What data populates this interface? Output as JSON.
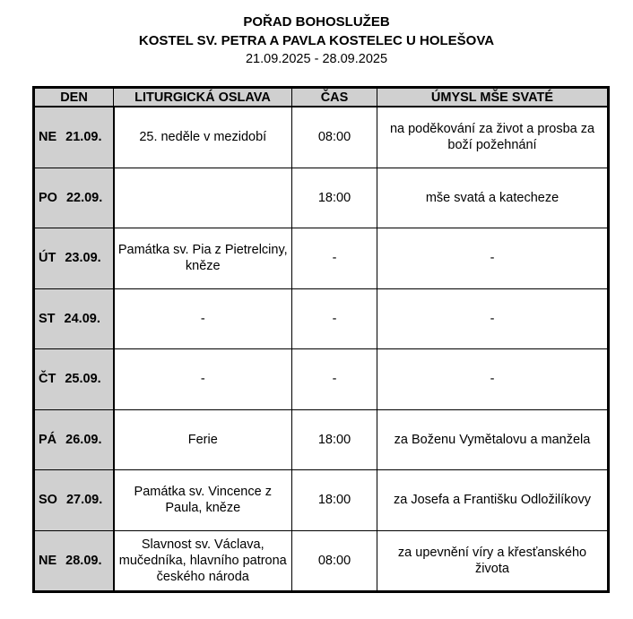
{
  "title": "POŘAD BOHOSLUŽEB",
  "subtitle": "KOSTEL SV. PETRA A PAVLA KOSTELEC U HOLEŠOVA",
  "date_range": "21.09.2025 - 28.09.2025",
  "columns": [
    "DEN",
    "LITURGICKÁ OSLAVA",
    "ČAS",
    "ÚMYSL MŠE SVATÉ"
  ],
  "rows": [
    {
      "day": "NE",
      "date": "21.09.",
      "celebration": "25. neděle v mezidobí",
      "time": "08:00",
      "intention": "na poděkování za život a prosba za boží požehnání"
    },
    {
      "day": "PO",
      "date": "22.09.",
      "celebration": "",
      "time": "18:00",
      "intention": "mše svatá a katecheze"
    },
    {
      "day": "ÚT",
      "date": "23.09.",
      "celebration": "Památka sv. Pia z Pietrelciny, kněze",
      "time": "-",
      "intention": "-"
    },
    {
      "day": "ST",
      "date": "24.09.",
      "celebration": "-",
      "time": "-",
      "intention": "-"
    },
    {
      "day": "ČT",
      "date": "25.09.",
      "celebration": "-",
      "time": "-",
      "intention": "-"
    },
    {
      "day": "PÁ",
      "date": "26.09.",
      "celebration": "Ferie",
      "time": "18:00",
      "intention": "za Boženu Vymětalovu a manžela"
    },
    {
      "day": "SO",
      "date": "27.09.",
      "celebration": "Památka sv. Vincence z Paula, kněze",
      "time": "18:00",
      "intention": "za Josefa a Františku Odložilíkovy"
    },
    {
      "day": "NE",
      "date": "28.09.",
      "celebration": "Slavnost sv. Václava, mučedníka, hlavního patrona českého národa",
      "time": "08:00",
      "intention": "za upevnění víry a křesťanského života"
    }
  ]
}
